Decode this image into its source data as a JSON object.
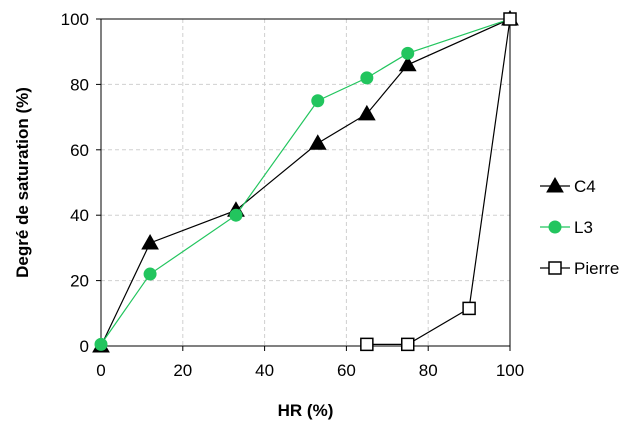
{
  "chart_data": {
    "type": "line",
    "title": "",
    "xlabel": "HR (%)",
    "ylabel": "Degré de saturation (%)",
    "xlim": [
      0,
      100
    ],
    "ylim": [
      0,
      100
    ],
    "xticks": [
      0,
      20,
      40,
      60,
      80,
      100
    ],
    "yticks": [
      0,
      20,
      40,
      60,
      80,
      100
    ],
    "grid": true,
    "legend_position": "right",
    "series": [
      {
        "name": "C4",
        "marker": "triangle",
        "color": "#000000",
        "x": [
          0,
          12,
          33,
          53,
          65,
          75,
          100
        ],
        "y": [
          0,
          31.5,
          41.5,
          62,
          71,
          86,
          100
        ]
      },
      {
        "name": "L3",
        "marker": "circle",
        "color": "#22c55e",
        "x": [
          0,
          12,
          33,
          53,
          65,
          75,
          100
        ],
        "y": [
          0.5,
          22,
          40,
          75,
          82,
          89.5,
          100
        ]
      },
      {
        "name": "Pierre",
        "marker": "square",
        "color": "#000000",
        "x": [
          65,
          75,
          90,
          100
        ],
        "y": [
          0.5,
          0.5,
          11.5,
          100
        ]
      }
    ]
  }
}
